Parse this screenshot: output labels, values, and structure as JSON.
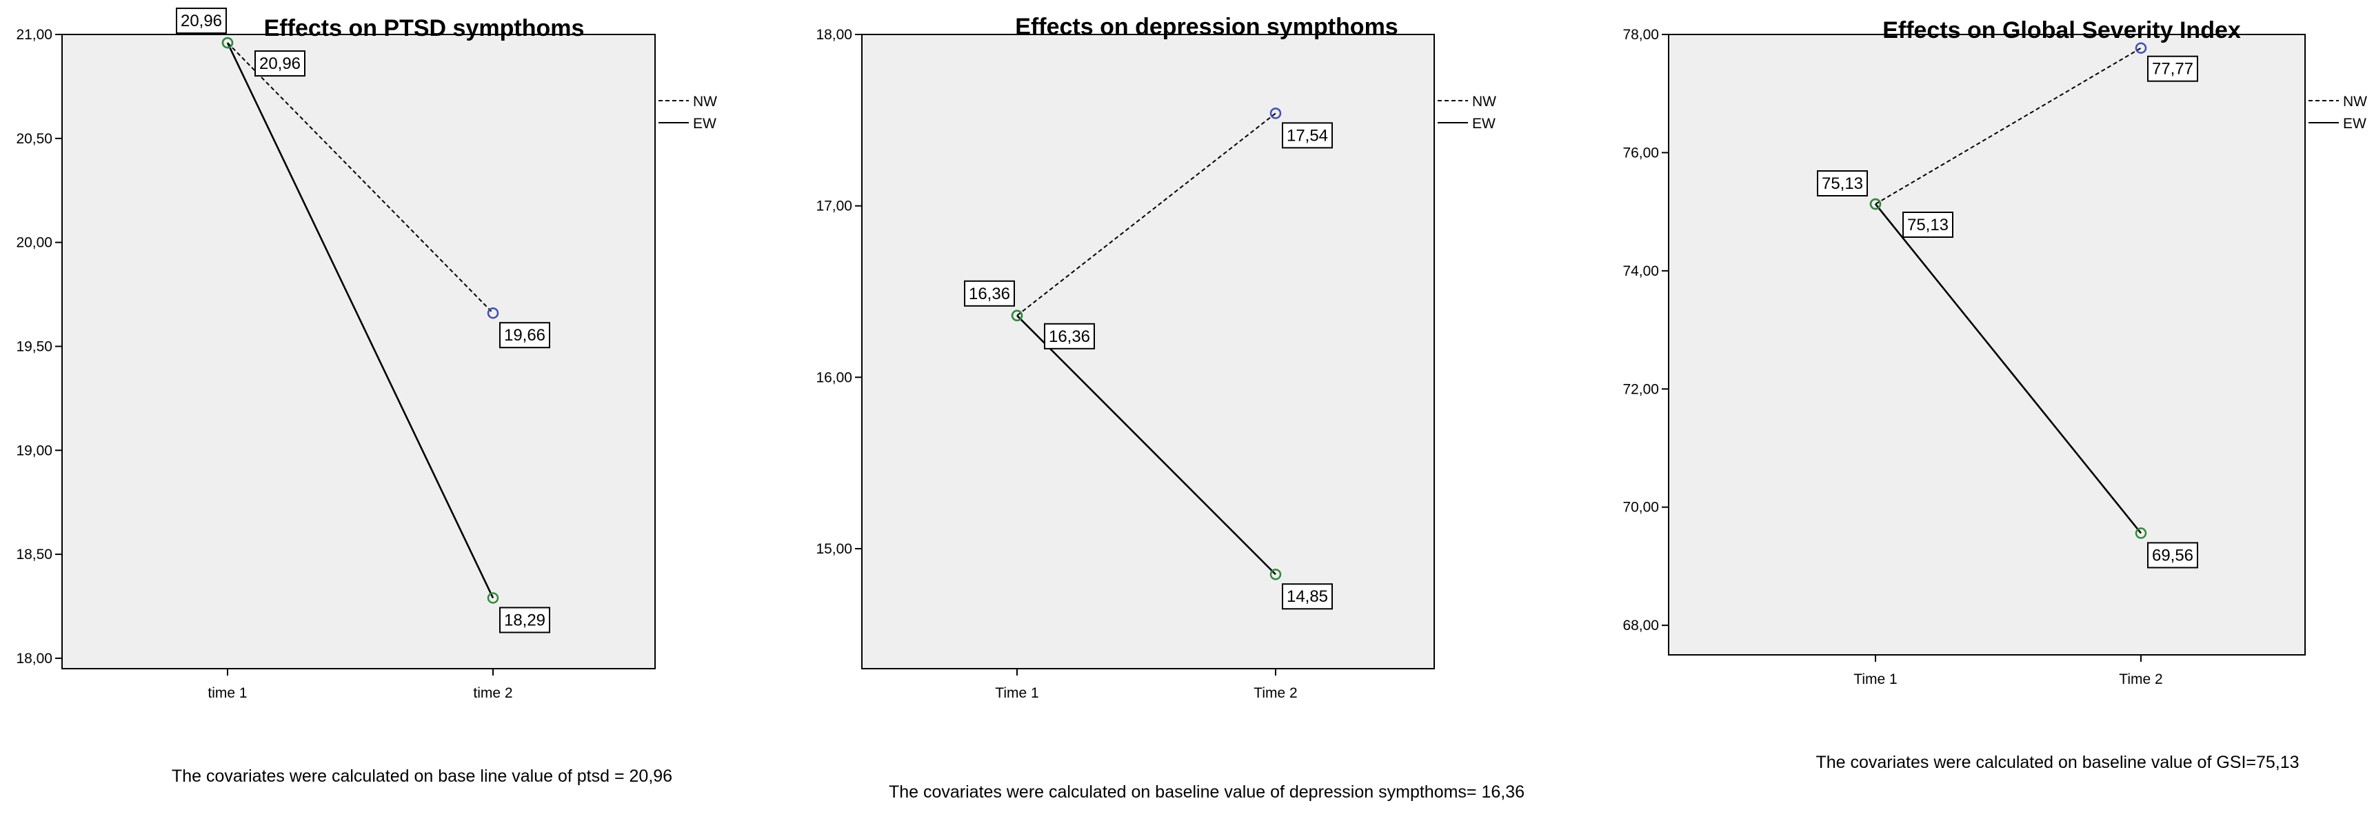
{
  "chart_data": [
    {
      "type": "line",
      "title": "Effects on PTSD sympthoms",
      "categories": [
        "time 1",
        "time 2"
      ],
      "y_ticks": [
        "21,00",
        "20,50",
        "20,00",
        "19,50",
        "19,00",
        "18,50",
        "18,00"
      ],
      "ylim": [
        17.95,
        21.0
      ],
      "series": [
        {
          "name": "NW",
          "style": "dashed",
          "values": [
            20.96,
            19.66
          ],
          "labels": [
            "20,96",
            "19,66"
          ],
          "marker_color": "#3b4fb8"
        },
        {
          "name": "EW",
          "style": "solid",
          "values": [
            20.96,
            18.29
          ],
          "labels": [
            "20,96",
            "18,29"
          ],
          "marker_color": "#2e8b3a"
        }
      ],
      "footnote": "The covariates were calculated on base line value of ptsd = 20,96",
      "grid": false,
      "legend_position": "right",
      "background": "#efefef"
    },
    {
      "type": "line",
      "title": "Effects on depression sympthoms",
      "categories": [
        "Time 1",
        "Time 2"
      ],
      "y_ticks": [
        "18,00",
        "17,00",
        "16,00",
        "15,00"
      ],
      "ylim": [
        14.3,
        18.0
      ],
      "series": [
        {
          "name": "NW",
          "style": "dashed",
          "values": [
            16.36,
            17.54
          ],
          "labels": [
            "16,36",
            "17,54"
          ],
          "marker_color": "#3b4fb8"
        },
        {
          "name": "EW",
          "style": "solid",
          "values": [
            16.36,
            14.85
          ],
          "labels": [
            "16,36",
            "14,85"
          ],
          "marker_color": "#2e8b3a"
        }
      ],
      "footnote": "The covariates were calculated on baseline value of depression sympthoms= 16,36",
      "grid": false,
      "legend_position": "right",
      "background": "#efefef"
    },
    {
      "type": "line",
      "title": "Effects on Global Severity Index",
      "categories": [
        "Time 1",
        "Time 2"
      ],
      "y_ticks": [
        "78,00",
        "76,00",
        "74,00",
        "72,00",
        "70,00",
        "68,00"
      ],
      "ylim": [
        67.5,
        78.0
      ],
      "series": [
        {
          "name": "NW",
          "style": "dashed",
          "values": [
            75.13,
            77.77
          ],
          "labels": [
            "75,13",
            "77,77"
          ],
          "marker_color": "#3b4fb8"
        },
        {
          "name": "EW",
          "style": "solid",
          "values": [
            75.13,
            69.56
          ],
          "labels": [
            "75,13",
            "69,56"
          ],
          "marker_color": "#2e8b3a"
        }
      ],
      "footnote": "The covariates were calculated on baseline value of GSI=75,13",
      "grid": false,
      "legend_position": "right",
      "background": "#efefef"
    }
  ]
}
